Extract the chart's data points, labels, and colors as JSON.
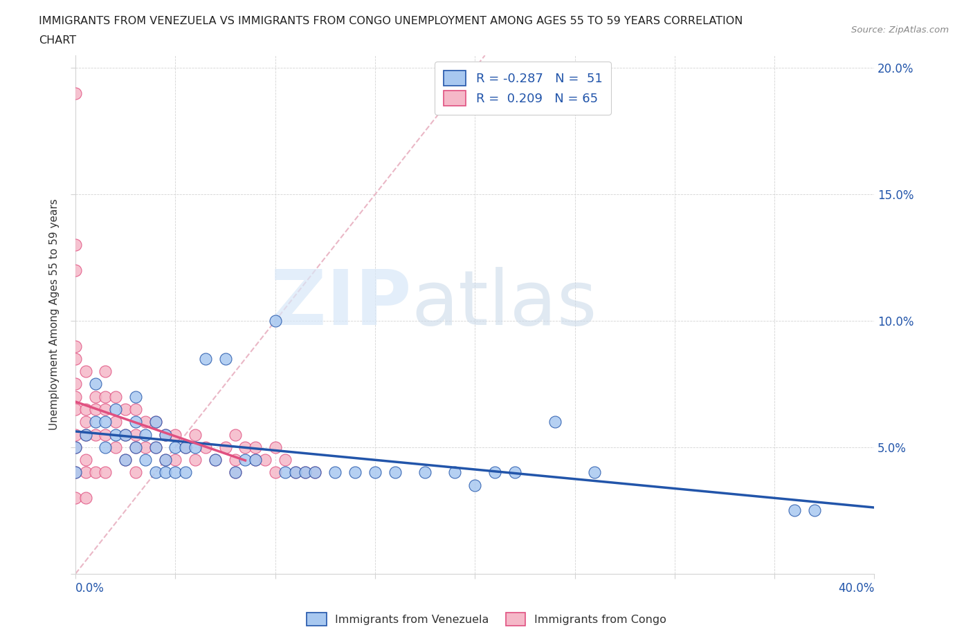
{
  "title_line1": "IMMIGRANTS FROM VENEZUELA VS IMMIGRANTS FROM CONGO UNEMPLOYMENT AMONG AGES 55 TO 59 YEARS CORRELATION",
  "title_line2": "CHART",
  "source": "Source: ZipAtlas.com",
  "ylabel": "Unemployment Among Ages 55 to 59 years",
  "color_venezuela": "#A8C8F0",
  "color_congo": "#F5B8C8",
  "trendline_venezuela": "#2255AA",
  "trendline_congo": "#E05080",
  "diagonal_color": "#E8B0C0",
  "xlim": [
    0.0,
    0.4
  ],
  "ylim": [
    0.0,
    0.205
  ],
  "venezuela_x": [
    0.0,
    0.0,
    0.005,
    0.01,
    0.01,
    0.015,
    0.015,
    0.02,
    0.02,
    0.025,
    0.025,
    0.03,
    0.03,
    0.03,
    0.035,
    0.035,
    0.04,
    0.04,
    0.04,
    0.045,
    0.045,
    0.045,
    0.05,
    0.05,
    0.055,
    0.055,
    0.06,
    0.065,
    0.07,
    0.075,
    0.08,
    0.085,
    0.09,
    0.1,
    0.105,
    0.11,
    0.115,
    0.12,
    0.13,
    0.14,
    0.15,
    0.16,
    0.175,
    0.19,
    0.2,
    0.21,
    0.22,
    0.24,
    0.26,
    0.36,
    0.37
  ],
  "venezuela_y": [
    0.05,
    0.04,
    0.055,
    0.075,
    0.06,
    0.06,
    0.05,
    0.065,
    0.055,
    0.055,
    0.045,
    0.07,
    0.06,
    0.05,
    0.055,
    0.045,
    0.06,
    0.05,
    0.04,
    0.055,
    0.045,
    0.04,
    0.05,
    0.04,
    0.05,
    0.04,
    0.05,
    0.085,
    0.045,
    0.085,
    0.04,
    0.045,
    0.045,
    0.1,
    0.04,
    0.04,
    0.04,
    0.04,
    0.04,
    0.04,
    0.04,
    0.04,
    0.04,
    0.04,
    0.035,
    0.04,
    0.04,
    0.06,
    0.04,
    0.025,
    0.025
  ],
  "congo_x": [
    0.0,
    0.0,
    0.0,
    0.0,
    0.0,
    0.0,
    0.0,
    0.0,
    0.0,
    0.0,
    0.0,
    0.0,
    0.005,
    0.005,
    0.005,
    0.005,
    0.005,
    0.005,
    0.005,
    0.01,
    0.01,
    0.01,
    0.01,
    0.015,
    0.015,
    0.015,
    0.015,
    0.015,
    0.02,
    0.02,
    0.02,
    0.025,
    0.025,
    0.025,
    0.03,
    0.03,
    0.03,
    0.03,
    0.035,
    0.035,
    0.04,
    0.04,
    0.045,
    0.045,
    0.05,
    0.05,
    0.055,
    0.06,
    0.06,
    0.065,
    0.07,
    0.075,
    0.08,
    0.08,
    0.08,
    0.085,
    0.09,
    0.09,
    0.095,
    0.1,
    0.1,
    0.105,
    0.11,
    0.115,
    0.12
  ],
  "congo_y": [
    0.19,
    0.13,
    0.12,
    0.09,
    0.085,
    0.075,
    0.07,
    0.065,
    0.055,
    0.05,
    0.04,
    0.03,
    0.08,
    0.065,
    0.06,
    0.055,
    0.045,
    0.04,
    0.03,
    0.07,
    0.065,
    0.055,
    0.04,
    0.08,
    0.07,
    0.065,
    0.055,
    0.04,
    0.07,
    0.06,
    0.05,
    0.065,
    0.055,
    0.045,
    0.065,
    0.055,
    0.05,
    0.04,
    0.06,
    0.05,
    0.06,
    0.05,
    0.055,
    0.045,
    0.055,
    0.045,
    0.05,
    0.055,
    0.045,
    0.05,
    0.045,
    0.05,
    0.055,
    0.045,
    0.04,
    0.05,
    0.05,
    0.045,
    0.045,
    0.05,
    0.04,
    0.045,
    0.04,
    0.04,
    0.04
  ]
}
